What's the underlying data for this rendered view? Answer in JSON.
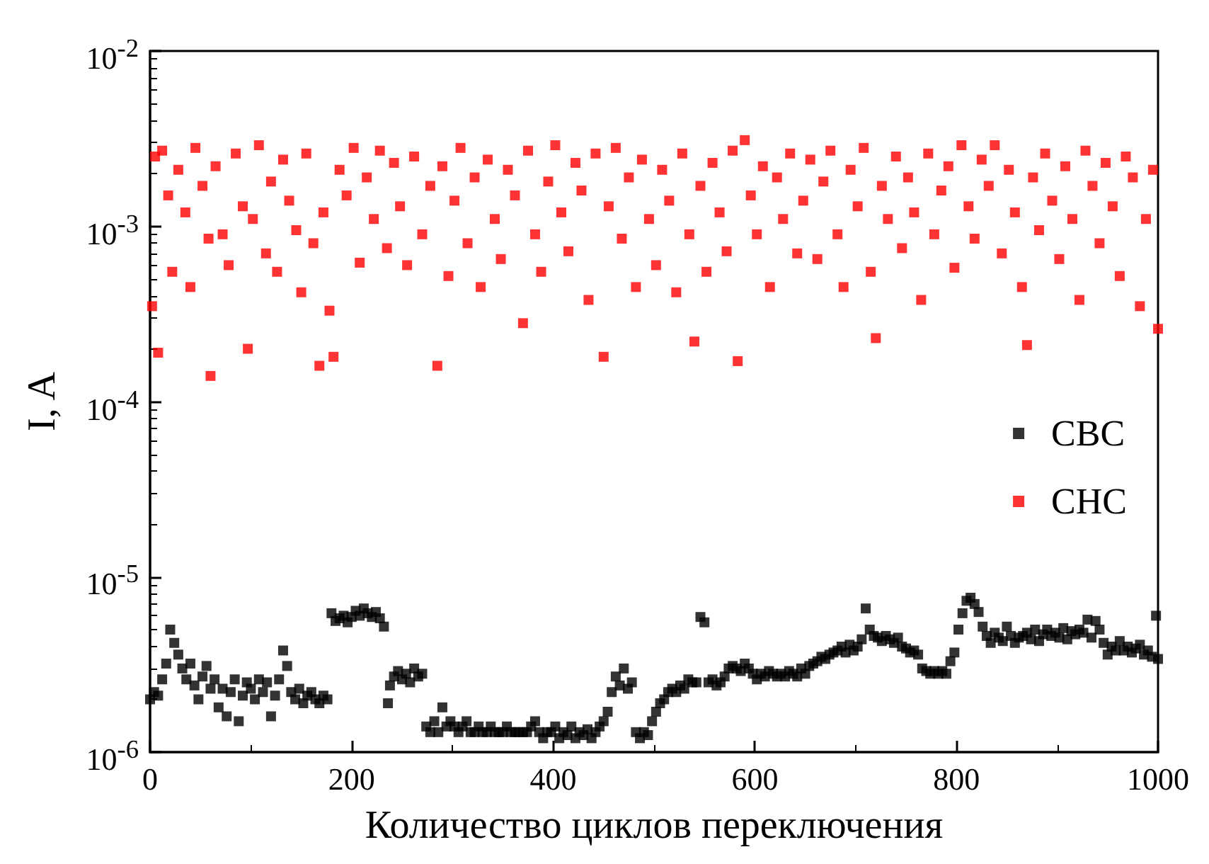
{
  "chart_data": {
    "type": "scatter",
    "xlabel": "Количество циклов переключения",
    "ylabel": "I, A",
    "log": "y",
    "marker": "square",
    "legend": "right",
    "xlim": [
      0,
      1000
    ],
    "xticks": [
      0,
      200,
      400,
      600,
      800,
      1000
    ],
    "ylim": [
      1e-06,
      0.01
    ],
    "yticks": [
      {
        "value": 1e-06,
        "label": "10$^{-6}$"
      },
      {
        "value": 1e-05,
        "label": "10$^{-5}$"
      },
      {
        "value": 0.0001,
        "label": "10$^{-4}$"
      },
      {
        "value": 0.001,
        "label": "10$^{-3}$"
      },
      {
        "value": 0.01,
        "label": "10$^{-2}$"
      }
    ],
    "series": [
      {
        "name": "CBC",
        "color": "#000000",
        "x": [
          0,
          4,
          8,
          12,
          16,
          20,
          24,
          28,
          32,
          36,
          40,
          44,
          48,
          52,
          56,
          60,
          64,
          68,
          72,
          76,
          80,
          84,
          88,
          92,
          96,
          100,
          104,
          108,
          112,
          116,
          120,
          124,
          128,
          132,
          136,
          140,
          144,
          148,
          152,
          156,
          160,
          164,
          168,
          172,
          176,
          180,
          184,
          188,
          192,
          196,
          200,
          204,
          208,
          212,
          216,
          220,
          224,
          228,
          232,
          236,
          238,
          242,
          246,
          250,
          254,
          258,
          262,
          266,
          270,
          274,
          278,
          282,
          286,
          290,
          294,
          298,
          302,
          306,
          310,
          314,
          318,
          322,
          326,
          330,
          334,
          338,
          342,
          346,
          350,
          354,
          358,
          362,
          366,
          370,
          374,
          378,
          382,
          386,
          390,
          394,
          398,
          402,
          406,
          410,
          414,
          418,
          422,
          426,
          430,
          434,
          438,
          442,
          446,
          450,
          454,
          458,
          462,
          466,
          470,
          474,
          478,
          482,
          486,
          490,
          494,
          498,
          502,
          506,
          510,
          514,
          518,
          522,
          526,
          530,
          534,
          538,
          542,
          546,
          550,
          554,
          558,
          562,
          566,
          570,
          574,
          578,
          582,
          586,
          590,
          594,
          598,
          602,
          606,
          610,
          614,
          618,
          622,
          626,
          630,
          634,
          638,
          642,
          646,
          650,
          654,
          658,
          662,
          666,
          670,
          674,
          678,
          682,
          686,
          690,
          694,
          698,
          702,
          706,
          710,
          714,
          718,
          722,
          726,
          730,
          734,
          738,
          742,
          746,
          750,
          754,
          758,
          762,
          766,
          770,
          774,
          778,
          782,
          786,
          790,
          794,
          798,
          802,
          806,
          810,
          814,
          818,
          822,
          826,
          830,
          834,
          838,
          842,
          846,
          850,
          854,
          858,
          862,
          866,
          870,
          874,
          878,
          882,
          886,
          890,
          894,
          898,
          902,
          906,
          910,
          914,
          918,
          922,
          926,
          930,
          934,
          938,
          942,
          946,
          950,
          954,
          958,
          962,
          966,
          970,
          974,
          978,
          982,
          986,
          990,
          994,
          998,
          1000
        ],
        "values": [
          2e-06,
          2.2e-06,
          2.1e-06,
          2.6e-06,
          3.2e-06,
          5e-06,
          4.2e-06,
          3.6e-06,
          3e-06,
          2.6e-06,
          3.2e-06,
          2.4e-06,
          2e-06,
          2.7e-06,
          3.1e-06,
          2.3e-06,
          2.6e-06,
          1.8e-06,
          2.3e-06,
          1.6e-06,
          2.2e-06,
          2.6e-06,
          1.5e-06,
          2.1e-06,
          2.5e-06,
          2.3e-06,
          2e-06,
          2.6e-06,
          2.2e-06,
          2.5e-06,
          1.6e-06,
          2.1e-06,
          2.6e-06,
          3.8e-06,
          3.1e-06,
          2.2e-06,
          2e-06,
          2.3e-06,
          1.9e-06,
          2.1e-06,
          2.2e-06,
          2e-06,
          1.9e-06,
          2.1e-06,
          2e-06,
          6.2e-06,
          5.6e-06,
          5.8e-06,
          6e-06,
          5.5e-06,
          5.9e-06,
          6.4e-06,
          6e-06,
          6.6e-06,
          6.2e-06,
          5.9e-06,
          6.3e-06,
          5.8e-06,
          5.2e-06,
          1.9e-06,
          2.4e-06,
          2.7e-06,
          2.9e-06,
          2.6e-06,
          2.8e-06,
          2.5e-06,
          3e-06,
          2.7e-06,
          2.8e-06,
          1.4e-06,
          1.3e-06,
          1.5e-06,
          1.3e-06,
          1.8e-06,
          1.4e-06,
          1.5e-06,
          1.4e-06,
          1.3e-06,
          1.4e-06,
          1.5e-06,
          1.3e-06,
          1.3e-06,
          1.4e-06,
          1.3e-06,
          1.3e-06,
          1.4e-06,
          1.3e-06,
          1.3e-06,
          1.3e-06,
          1.4e-06,
          1.3e-06,
          1.3e-06,
          1.3e-06,
          1.3e-06,
          1.3e-06,
          1.4e-06,
          1.5e-06,
          1.3e-06,
          1.2e-06,
          1.3e-06,
          1.3e-06,
          1.4e-06,
          1.2e-06,
          1.3e-06,
          1.25e-06,
          1.4e-06,
          1.2e-06,
          1.3e-06,
          1.25e-06,
          1.35e-06,
          1.2e-06,
          1.3e-06,
          1.4e-06,
          1.5e-06,
          1.7e-06,
          2.2e-06,
          2.7e-06,
          2.4e-06,
          3e-06,
          2.3e-06,
          2.5e-06,
          1.3e-06,
          1.2e-06,
          1.3e-06,
          1.25e-06,
          1.5e-06,
          1.7e-06,
          1.9e-06,
          2e-06,
          2.2e-06,
          2.3e-06,
          2.2e-06,
          2.4e-06,
          2.3e-06,
          2.6e-06,
          2.5e-06,
          2.5e-06,
          5.9e-06,
          5.5e-06,
          2.5e-06,
          2.6e-06,
          2.4e-06,
          2.5e-06,
          2.7e-06,
          3e-06,
          3.1e-06,
          3e-06,
          2.9e-06,
          3.2e-06,
          3e-06,
          2.8e-06,
          2.6e-06,
          2.8e-06,
          2.7e-06,
          2.9e-06,
          2.8e-06,
          2.7e-06,
          2.8e-06,
          2.7e-06,
          2.9e-06,
          2.8e-06,
          2.7e-06,
          3e-06,
          2.8e-06,
          3.1e-06,
          3.2e-06,
          3.3e-06,
          3.5e-06,
          3.4e-06,
          3.6e-06,
          3.7e-06,
          3.8e-06,
          4e-06,
          3.7e-06,
          4.1e-06,
          3.8e-06,
          4e-06,
          4.4e-06,
          6.6e-06,
          5e-06,
          4.6e-06,
          4.5e-06,
          4.3e-06,
          4.6e-06,
          4.4e-06,
          4.2e-06,
          4.5e-06,
          4e-06,
          3.9e-06,
          3.7e-06,
          3.8e-06,
          3.6e-06,
          3e-06,
          2.9e-06,
          2.8e-06,
          2.9e-06,
          2.8e-06,
          2.9e-06,
          2.8e-06,
          3.3e-06,
          3.7e-06,
          5e-06,
          6.2e-06,
          7.3e-06,
          7.6e-06,
          7e-06,
          6.3e-06,
          5.2e-06,
          4.6e-06,
          4.2e-06,
          4.8e-06,
          4.5e-06,
          4.3e-06,
          5.2e-06,
          4.6e-06,
          4.2e-06,
          4.5e-06,
          4.6e-06,
          4.8e-06,
          4.4e-06,
          5e-06,
          4.3e-06,
          4.7e-06,
          5e-06,
          4.6e-06,
          4.8e-06,
          4.5e-06,
          5.1e-06,
          4.4e-06,
          4.9e-06,
          4.7e-06,
          5e-06,
          4.8e-06,
          5.7e-06,
          4.5e-06,
          5.6e-06,
          5e-06,
          4.2e-06,
          3.6e-06,
          4e-06,
          3.8e-06,
          4.3e-06,
          3.8e-06,
          4e-06,
          3.7e-06,
          3.9e-06,
          4.1e-06,
          3.6e-06,
          3.8e-06,
          3.5e-06,
          6e-06,
          3.4e-06
        ]
      },
      {
        "name": "CHC",
        "color": "#ff0000",
        "x": [
          2,
          5,
          8,
          12,
          18,
          22,
          28,
          35,
          40,
          45,
          52,
          58,
          60,
          65,
          72,
          78,
          85,
          92,
          97,
          102,
          108,
          115,
          120,
          126,
          132,
          138,
          145,
          150,
          155,
          162,
          168,
          172,
          178,
          182,
          188,
          195,
          202,
          208,
          215,
          222,
          228,
          235,
          242,
          248,
          255,
          262,
          270,
          278,
          285,
          290,
          296,
          302,
          308,
          315,
          322,
          328,
          335,
          342,
          348,
          355,
          362,
          370,
          375,
          382,
          388,
          395,
          402,
          408,
          415,
          422,
          428,
          435,
          442,
          450,
          455,
          462,
          468,
          475,
          482,
          488,
          495,
          502,
          508,
          515,
          522,
          528,
          535,
          540,
          546,
          552,
          558,
          565,
          572,
          578,
          583,
          590,
          596,
          602,
          608,
          615,
          622,
          628,
          635,
          642,
          648,
          655,
          662,
          668,
          675,
          682,
          688,
          695,
          702,
          708,
          715,
          720,
          726,
          732,
          740,
          746,
          752,
          758,
          765,
          772,
          778,
          785,
          792,
          798,
          805,
          812,
          818,
          825,
          832,
          838,
          845,
          852,
          858,
          865,
          870,
          876,
          882,
          888,
          895,
          902,
          908,
          915,
          922,
          928,
          935,
          942,
          948,
          955,
          962,
          968,
          975,
          982,
          988,
          995,
          1000
        ],
        "values": [
          0.00035,
          0.0025,
          0.00019,
          0.0027,
          0.0015,
          0.00055,
          0.0021,
          0.0012,
          0.00045,
          0.0028,
          0.0017,
          0.00085,
          0.00014,
          0.0022,
          0.0009,
          0.0006,
          0.0026,
          0.0013,
          0.0002,
          0.0011,
          0.0029,
          0.0007,
          0.0018,
          0.00055,
          0.0024,
          0.0014,
          0.00095,
          0.00042,
          0.0026,
          0.0008,
          0.00016,
          0.0012,
          0.00033,
          0.00018,
          0.0021,
          0.0015,
          0.0028,
          0.00062,
          0.0019,
          0.0011,
          0.0027,
          0.00075,
          0.0023,
          0.0013,
          0.0006,
          0.0025,
          0.0009,
          0.0017,
          0.00016,
          0.0022,
          0.00052,
          0.0014,
          0.0028,
          0.0008,
          0.0019,
          0.00045,
          0.0024,
          0.0011,
          0.00065,
          0.0021,
          0.0015,
          0.00028,
          0.0027,
          0.0009,
          0.00055,
          0.0018,
          0.0029,
          0.0012,
          0.00072,
          0.0023,
          0.0016,
          0.00038,
          0.0026,
          0.00018,
          0.0013,
          0.0028,
          0.00085,
          0.0019,
          0.00045,
          0.0024,
          0.0011,
          0.0006,
          0.0021,
          0.0014,
          0.00042,
          0.0026,
          0.0009,
          0.00022,
          0.0017,
          0.00055,
          0.0023,
          0.0012,
          0.00072,
          0.0027,
          0.00017,
          0.0031,
          0.0015,
          0.0009,
          0.0022,
          0.00045,
          0.0019,
          0.0011,
          0.0026,
          0.0007,
          0.0014,
          0.0024,
          0.00065,
          0.0018,
          0.0027,
          0.0009,
          0.00045,
          0.0021,
          0.0013,
          0.0028,
          0.00055,
          0.00023,
          0.0017,
          0.0011,
          0.0025,
          0.00075,
          0.0019,
          0.0012,
          0.00038,
          0.0026,
          0.0009,
          0.0016,
          0.0022,
          0.00058,
          0.0029,
          0.0013,
          0.00085,
          0.0024,
          0.0017,
          0.0029,
          0.0007,
          0.0021,
          0.0012,
          0.00045,
          0.00021,
          0.0019,
          0.00095,
          0.0026,
          0.0014,
          0.00065,
          0.0022,
          0.0011,
          0.00038,
          0.0027,
          0.0017,
          0.0008,
          0.0023,
          0.0013,
          0.00052,
          0.0025,
          0.0019,
          0.00035,
          0.0011,
          0.0021,
          0.00026
        ]
      }
    ]
  }
}
